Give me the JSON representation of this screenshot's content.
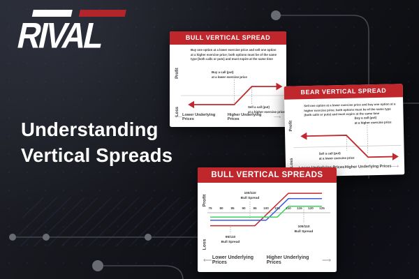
{
  "brand": {
    "logo_text": "RIVAL",
    "logo_red": "#b2252a"
  },
  "headline": {
    "line1": "Understanding",
    "line2": "Vertical Spreads"
  },
  "icons": {
    "arrow_left": "⟵",
    "arrow_right": "⟶"
  },
  "colors": {
    "accent_red": "#c0272d",
    "card_bg": "#ffffff",
    "line_red": "#c0282d",
    "line_blue": "#3b5bdb",
    "line_green": "#3bd45c",
    "circuit_gray": "#686b72"
  },
  "cards": {
    "bull": {
      "title": "BULL VERTICAL SPREAD",
      "description": "Buy one option at a lower exercise price and sell one option at a higher exercise price; both options must be of the same type (both calls or puts) and must expire at the same time",
      "profit_label": "Profit",
      "loss_label": "Loss",
      "buy_annotation": "Buy a call (put)\nat a lower exercise price",
      "sell_annotation": "Sell a call (put)\nat a higher exercise price",
      "x_left_label": "Lower Underlying Prices",
      "x_right_label": "Higher Underlying Prices"
    },
    "bear": {
      "title": "BEAR VERTICAL SPREAD",
      "description": "Sell one option at a lower exercise price and buy one option at a higher exercise price; both options must be of the same type (both calls or puts) and must expire at the same time",
      "profit_label": "Profit",
      "loss_label": "Loss",
      "sell_annotation": "Sell a call (put)\nat a lower exercise price",
      "buy_annotation": "Buy a call (put)\nat a higher exercise price",
      "x_left_label": "Lower Underlying Prices",
      "x_right_label": "Higher Underlying Prices"
    },
    "spreads": {
      "title": "BULL VERTICAL SPREADS",
      "profit_label": "Profit",
      "loss_label": "Loss",
      "annotation_100_110": "100/110\nBull Spread",
      "annotation_95_110": "95/110\nBull Spread",
      "annotation_105_110": "105/110\nBull Spread",
      "x_left_label": "Lower Underlying Prices",
      "x_right_label": "Higher Underlying Prices"
    }
  },
  "chart_data": [
    {
      "type": "line",
      "title": "BULL VERTICAL SPREAD",
      "ylabel_top": "Profit",
      "ylabel_bottom": "Loss",
      "xlabel_left": "Lower Underlying Prices",
      "xlabel_right": "Higher Underlying Prices",
      "x_axis": "qualitative underlying price (schematic, zero profit line shown)",
      "series": [
        {
          "name": "bull vertical spread payoff",
          "color": "#c0282d",
          "points": [
            [
              0,
              -1
            ],
            [
              4.6,
              -1
            ],
            [
              6.4,
              1
            ],
            [
              9.4,
              1
            ]
          ]
        }
      ],
      "annotations": [
        "Buy a call (put) at a lower exercise price",
        "Sell a call (put) at a higher exercise price"
      ]
    },
    {
      "type": "line",
      "title": "BEAR VERTICAL SPREAD",
      "ylabel_top": "Profit",
      "ylabel_bottom": "Loss",
      "xlabel_left": "Lower Underlying Prices",
      "xlabel_right": "Higher Underlying Prices",
      "x_axis": "qualitative underlying price (schematic, zero profit line shown)",
      "series": [
        {
          "name": "bear vertical spread payoff",
          "color": "#c0282d",
          "points": [
            [
              0,
              1
            ],
            [
              4.4,
              1
            ],
            [
              6.5,
              -1
            ],
            [
              9.4,
              -1
            ]
          ]
        }
      ],
      "annotations": [
        "Sell a call (put) at a lower exercise price",
        "Buy a call (put) at a higher exercise price"
      ]
    },
    {
      "type": "line",
      "title": "BULL VERTICAL SPREADS",
      "ylabel_top": "Profit",
      "ylabel_bottom": "Loss",
      "xlabel_left": "Lower Underlying Prices",
      "xlabel_right": "Higher Underlying Prices",
      "x_ticks": [
        75,
        80,
        85,
        90,
        95,
        100,
        105,
        110,
        115,
        120,
        125
      ],
      "xlim": [
        75,
        125
      ],
      "series": [
        {
          "name": "95/110 Bull Spread",
          "color": "#c0282d",
          "points": [
            [
              75,
              -6
            ],
            [
              95,
              -6
            ],
            [
              110,
              9
            ],
            [
              125,
              9
            ]
          ]
        },
        {
          "name": "100/110 Bull Spread",
          "color": "#3b5bdb",
          "points": [
            [
              75,
              -3.5
            ],
            [
              100,
              -3.5
            ],
            [
              110,
              6.5
            ],
            [
              125,
              6.5
            ]
          ]
        },
        {
          "name": "105/110 Bull Spread",
          "color": "#3bd45c",
          "points": [
            [
              75,
              -2
            ],
            [
              105,
              -2
            ],
            [
              110,
              3
            ],
            [
              125,
              3
            ]
          ]
        }
      ],
      "annotations": [
        "100/110 Bull Spread",
        "95/110 Bull Spread",
        "105/110 Bull Spread"
      ]
    }
  ]
}
